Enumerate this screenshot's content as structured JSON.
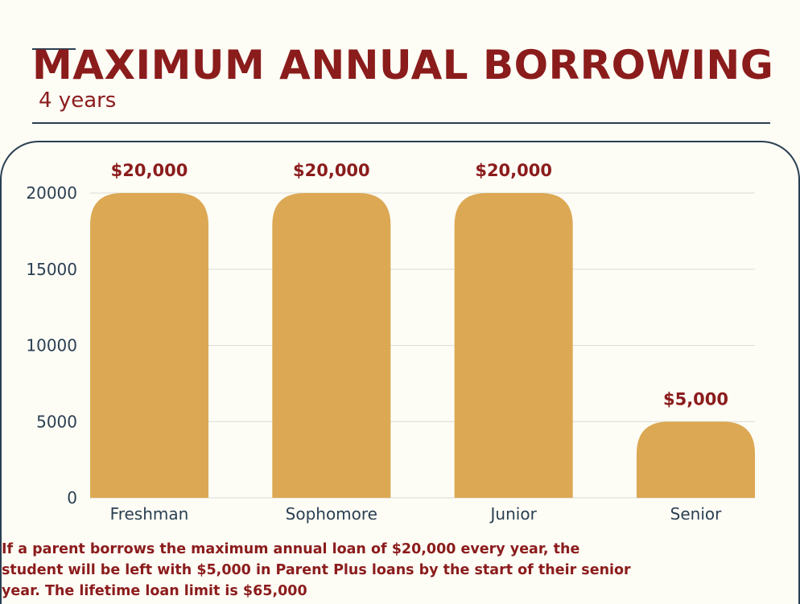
{
  "header": {
    "title": "MAXIMUM ANNUAL BORROWING",
    "subtitle": "4 years"
  },
  "footnote": "If a parent borrows the maximum annual loan of $20,000 every year, the student will be left with $5,000 in Parent Plus loans by the start of their senior year. The lifetime loan limit is $65,000",
  "colors": {
    "bar": "#dca853",
    "title": "#8b1c1c",
    "axis_text": "#2a3f52",
    "grid": "#dcdcd6"
  },
  "chart_data": {
    "type": "bar",
    "categories": [
      "Freshman",
      "Sophomore",
      "Junior",
      "Senior"
    ],
    "values": [
      20000,
      20000,
      20000,
      5000
    ],
    "data_labels": [
      "$20,000",
      "$20,000",
      "$20,000",
      "$5,000"
    ],
    "yticks": [
      0,
      5000,
      10000,
      15000,
      20000
    ],
    "ylim": [
      0,
      20000
    ],
    "title": "MAXIMUM ANNUAL BORROWING",
    "subtitle": "4 years",
    "xlabel": "",
    "ylabel": "",
    "grid": true,
    "legend": "none"
  }
}
